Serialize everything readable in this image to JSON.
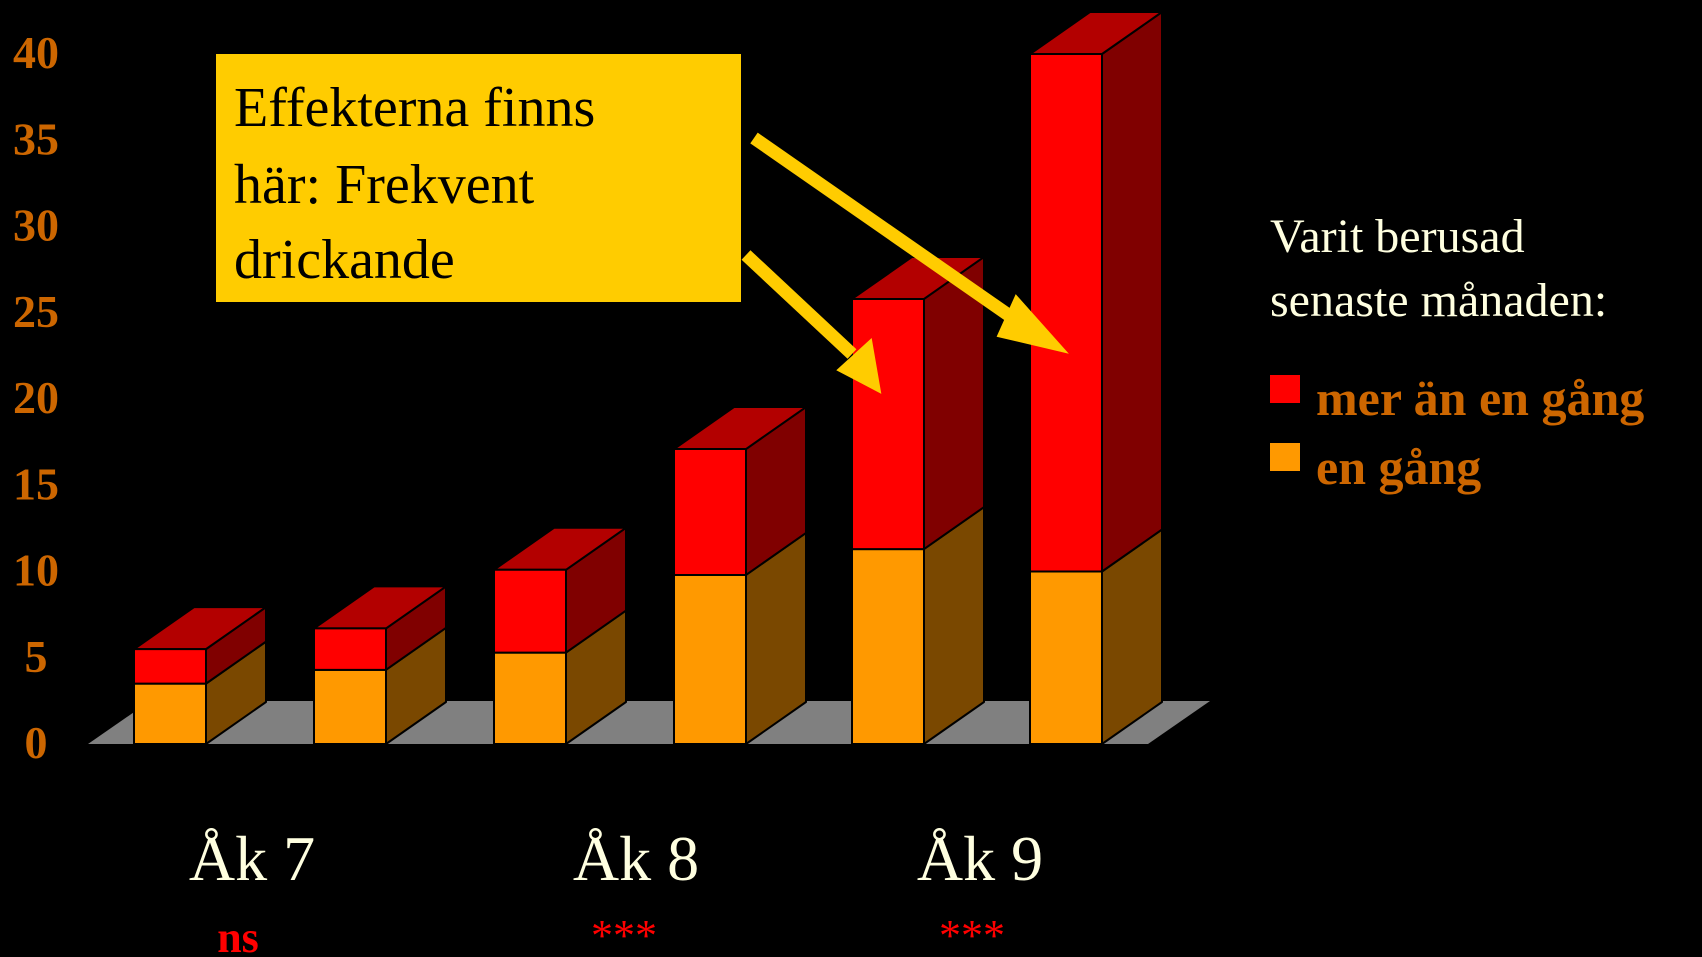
{
  "chart_data": {
    "type": "bar",
    "stacked": true,
    "three_d": true,
    "y_ticks": [
      "0",
      "5",
      "10",
      "15",
      "20",
      "25",
      "30",
      "35",
      "40"
    ],
    "ylim": [
      0,
      40
    ],
    "groups": [
      {
        "label": "Åk 7",
        "significance": "ns"
      },
      {
        "label": "Åk 8",
        "significance": "***"
      },
      {
        "label": "Åk 9",
        "significance": "***"
      }
    ],
    "series": [
      {
        "name": "en gång",
        "values": [
          3.5,
          4.3,
          5.3,
          9.8,
          11.3,
          10.0
        ]
      },
      {
        "name": "mer än en gång",
        "values": [
          2.0,
          2.4,
          4.8,
          7.3,
          14.5,
          30.0
        ]
      }
    ],
    "legend": {
      "title_line1": "Varit berusad",
      "title_line2": "senaste månaden:",
      "placement": "right"
    },
    "annotation": {
      "line1": "Effekterna finns",
      "line2": "här: Frekvent",
      "line3": "drickande"
    },
    "colors": {
      "en_gang_front": "#FF9900",
      "en_gang_side": "#7A4800",
      "mer_front": "#FF0000",
      "mer_top": "#B30000",
      "mer_side": "#800000",
      "axis_text": "#CC6600",
      "legend_text": "#CC6600",
      "significance": "#FF0000",
      "floor": "#808080",
      "callout_bg": "#FFCC00",
      "arrow": "#FFCC00",
      "label_text": "#FFFFE0"
    }
  }
}
